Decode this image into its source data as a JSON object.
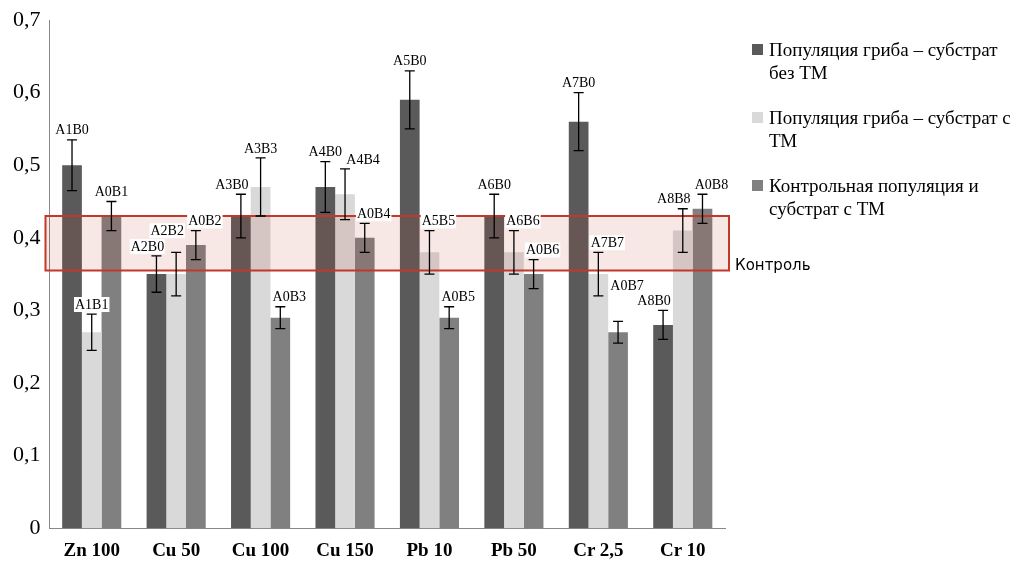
{
  "chart_data": {
    "type": "bar",
    "categories": [
      "Zn 100",
      "Cu 50",
      "Cu 100",
      "Cu 150",
      "Pb 10",
      "Pb 50",
      "Cr 2,5",
      "Cr 10"
    ],
    "series": [
      {
        "name": "Популяция гриба – субстрат без ТМ",
        "color": "#5a5a5a",
        "values": [
          0.5,
          0.35,
          0.43,
          0.47,
          0.59,
          0.43,
          0.56,
          0.28
        ],
        "errors": [
          0.035,
          0.025,
          0.03,
          0.035,
          0.04,
          0.03,
          0.04,
          0.02
        ],
        "value_labels": [
          "A1B0",
          "A2B0",
          "A3B0",
          "A4B0",
          "A5B0",
          "A6B0",
          "A7B0",
          "A8B0"
        ]
      },
      {
        "name": "Популяция гриба – субстрат с ТМ",
        "color": "#d9d9d9",
        "values": [
          0.27,
          0.35,
          0.47,
          0.46,
          0.38,
          0.38,
          0.35,
          0.41
        ],
        "errors": [
          0.025,
          0.03,
          0.04,
          0.035,
          0.03,
          0.03,
          0.03,
          0.03
        ],
        "value_labels": [
          "A1B1",
          "A2B2",
          "A3B3",
          "A4B4",
          "A5B5",
          "A6B6",
          "A7B7",
          "A8B8"
        ]
      },
      {
        "name": "Контрольная популяция и субстрат с ТМ",
        "color": "#808080",
        "values": [
          0.43,
          0.39,
          0.29,
          0.4,
          0.29,
          0.35,
          0.27,
          0.44
        ],
        "errors": [
          0.02,
          0.02,
          0.015,
          0.02,
          0.015,
          0.02,
          0.015,
          0.02
        ],
        "value_labels": [
          "A0B1",
          "A0B2",
          "A0B3",
          "A0B4",
          "A0B5",
          "A0B6",
          "A0B7",
          "A0B8"
        ]
      }
    ],
    "ylim": [
      0,
      0.7
    ],
    "yticks": [
      {
        "value": 0,
        "label": "0"
      },
      {
        "value": 0.1,
        "label": "0,1"
      },
      {
        "value": 0.2,
        "label": "0,2"
      },
      {
        "value": 0.3,
        "label": "0,3"
      },
      {
        "value": 0.4,
        "label": "0,4"
      },
      {
        "value": 0.5,
        "label": "0,5"
      },
      {
        "value": 0.6,
        "label": "0,6"
      },
      {
        "value": 0.7,
        "label": "0,7"
      }
    ],
    "bands": [
      {
        "axis": "y",
        "from": 0.355,
        "to": 0.43,
        "label": "Контроль",
        "color": "#c0392b"
      }
    ],
    "grid": false,
    "legend": "right"
  }
}
